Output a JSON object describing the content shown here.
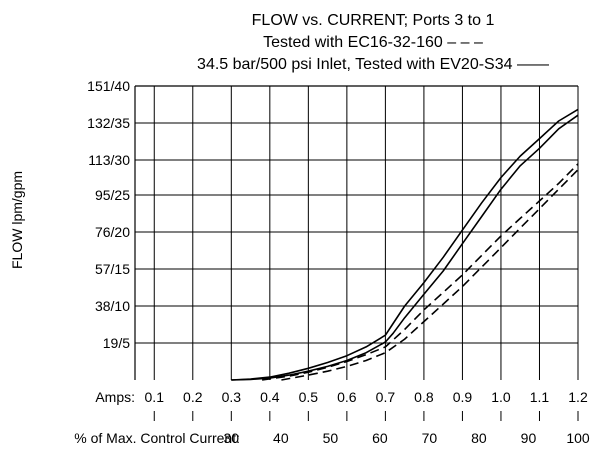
{
  "chart_data": {
    "type": "line",
    "title_lines": [
      "FLOW vs. CURRENT; Ports 3 to 1",
      "Tested with EC16-32-160 – – –",
      "34.5 bar/500 psi Inlet, Tested with EV20-S34 ——"
    ],
    "ylabel": "FLOW lpm/gpm",
    "y_ticks": [
      {
        "v": 19,
        "label": "19/5"
      },
      {
        "v": 38,
        "label": "38/10"
      },
      {
        "v": 57,
        "label": "57/15"
      },
      {
        "v": 76,
        "label": "76/20"
      },
      {
        "v": 95,
        "label": "95/25"
      },
      {
        "v": 113,
        "label": "113/30"
      },
      {
        "v": 132,
        "label": "132/35"
      },
      {
        "v": 151,
        "label": "151/40"
      }
    ],
    "ylim": [
      0,
      151
    ],
    "amps_label": "Amps:",
    "amps_ticks": [
      "0.1",
      "0.2",
      "0.3",
      "0.4",
      "0.5",
      "0.6",
      "0.7",
      "0.8",
      "0.9",
      "1.0",
      "1.1",
      "1.2"
    ],
    "percent_label": "% of Max. Control Current:",
    "percent_ticks": [
      "30",
      "40",
      "50",
      "60",
      "70",
      "80",
      "90",
      "100"
    ],
    "xlim": [
      0.05,
      1.2
    ],
    "grid": true,
    "series": [
      {
        "name": "Tested with EV20-S34",
        "style": "solid",
        "x": [
          0.3,
          0.35,
          0.4,
          0.45,
          0.5,
          0.55,
          0.6,
          0.65,
          0.7,
          0.72,
          0.75,
          0.8,
          0.85,
          0.9,
          0.95,
          1.0,
          1.05,
          1.1,
          1.15,
          1.2
        ],
        "y": [
          0,
          0.5,
          1.5,
          3.5,
          6,
          9,
          12.5,
          17,
          23,
          29,
          38,
          50,
          63,
          77,
          91,
          104,
          115,
          124,
          133,
          139
        ]
      },
      {
        "name": "Tested with EV20-S34",
        "style": "solid",
        "x": [
          0.3,
          0.35,
          0.4,
          0.45,
          0.5,
          0.55,
          0.6,
          0.65,
          0.7,
          0.72,
          0.75,
          0.8,
          0.85,
          0.9,
          0.95,
          1.0,
          1.05,
          1.1,
          1.15,
          1.2
        ],
        "y": [
          0,
          0.3,
          1,
          2.5,
          4.5,
          7,
          10,
          14,
          19.5,
          24,
          32,
          44,
          56,
          70,
          84,
          98,
          110,
          119,
          129,
          136
        ]
      },
      {
        "name": "Tested with EC16-32-160",
        "style": "dashed",
        "x": [
          0.38,
          0.45,
          0.5,
          0.55,
          0.6,
          0.65,
          0.7,
          0.75,
          0.8,
          0.85,
          0.9,
          0.95,
          1.0,
          1.05,
          1.1,
          1.15,
          1.2
        ],
        "y": [
          0,
          2,
          4,
          6.5,
          9.5,
          13,
          17,
          26,
          36,
          45,
          54,
          64,
          74,
          83,
          92,
          101,
          111
        ]
      },
      {
        "name": "Tested with EC16-32-160",
        "style": "dashed",
        "x": [
          0.43,
          0.5,
          0.55,
          0.6,
          0.65,
          0.7,
          0.75,
          0.8,
          0.85,
          0.9,
          0.95,
          1.0,
          1.05,
          1.1,
          1.15,
          1.2
        ],
        "y": [
          0,
          2.5,
          4.5,
          7,
          10,
          14,
          21,
          30,
          39,
          48,
          58,
          68,
          78,
          88,
          98,
          108
        ]
      }
    ]
  }
}
